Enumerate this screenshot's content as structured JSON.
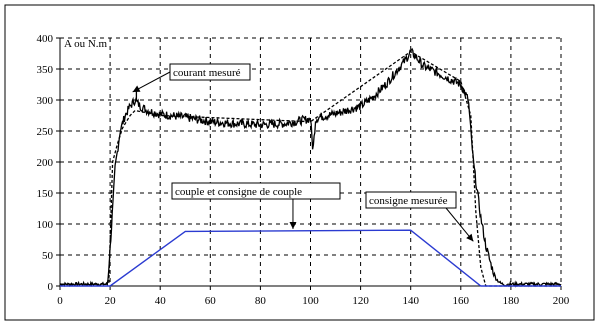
{
  "chart_data": {
    "type": "line",
    "ylabel": "A ou N.m",
    "xlim": [
      0,
      200
    ],
    "ylim": [
      0,
      400
    ],
    "x_ticks": [
      0,
      20,
      40,
      60,
      80,
      100,
      120,
      140,
      160,
      180,
      200
    ],
    "y_ticks": [
      0,
      50,
      100,
      150,
      200,
      250,
      300,
      350,
      400
    ],
    "grid": "dashed",
    "series": [
      {
        "name": "courant mesuré",
        "style": "solid",
        "color": "#000000",
        "x": [
          0,
          19,
          20.5,
          22,
          24,
          26,
          28,
          30,
          32,
          35,
          40,
          50,
          60,
          70,
          80,
          90,
          95,
          100,
          101,
          102,
          103,
          110,
          120,
          125,
          130,
          135,
          138,
          140,
          142,
          145,
          150,
          155,
          160,
          163,
          165,
          168,
          170,
          172,
          174,
          176,
          178,
          180,
          185,
          190,
          200
        ],
        "y": [
          3,
          3,
          90,
          190,
          250,
          275,
          290,
          300,
          290,
          283,
          277,
          272,
          265,
          262,
          260,
          262,
          266,
          270,
          218,
          268,
          272,
          278,
          290,
          305,
          325,
          350,
          365,
          378,
          370,
          355,
          345,
          335,
          325,
          300,
          200,
          110,
          65,
          35,
          12,
          4,
          2,
          3,
          3,
          3,
          3
        ]
      },
      {
        "name": "consigne mesurée",
        "style": "dashed",
        "color": "#000000",
        "x": [
          0,
          19.5,
          21,
          23,
          25,
          28,
          30,
          40,
          100,
          140,
          160,
          164,
          166,
          168,
          170,
          200
        ],
        "y": [
          3,
          3,
          200,
          230,
          255,
          275,
          283,
          275,
          265,
          378,
          330,
          275,
          120,
          30,
          0,
          0
        ]
      },
      {
        "name": "couple et consigne de couple",
        "style": "solid",
        "color": "#2b3bd1",
        "x": [
          0,
          20,
          50,
          140,
          168,
          200
        ],
        "y": [
          0,
          0,
          88,
          90,
          0,
          0
        ]
      }
    ],
    "annotations": [
      {
        "text": "courant mesuré",
        "target_x": 29,
        "target_y": 313
      },
      {
        "text": "couple et consigne de couple",
        "target_x": 93,
        "target_y": 92
      },
      {
        "text": "consigne mesurée",
        "target_x": 165,
        "target_y": 72
      }
    ]
  }
}
